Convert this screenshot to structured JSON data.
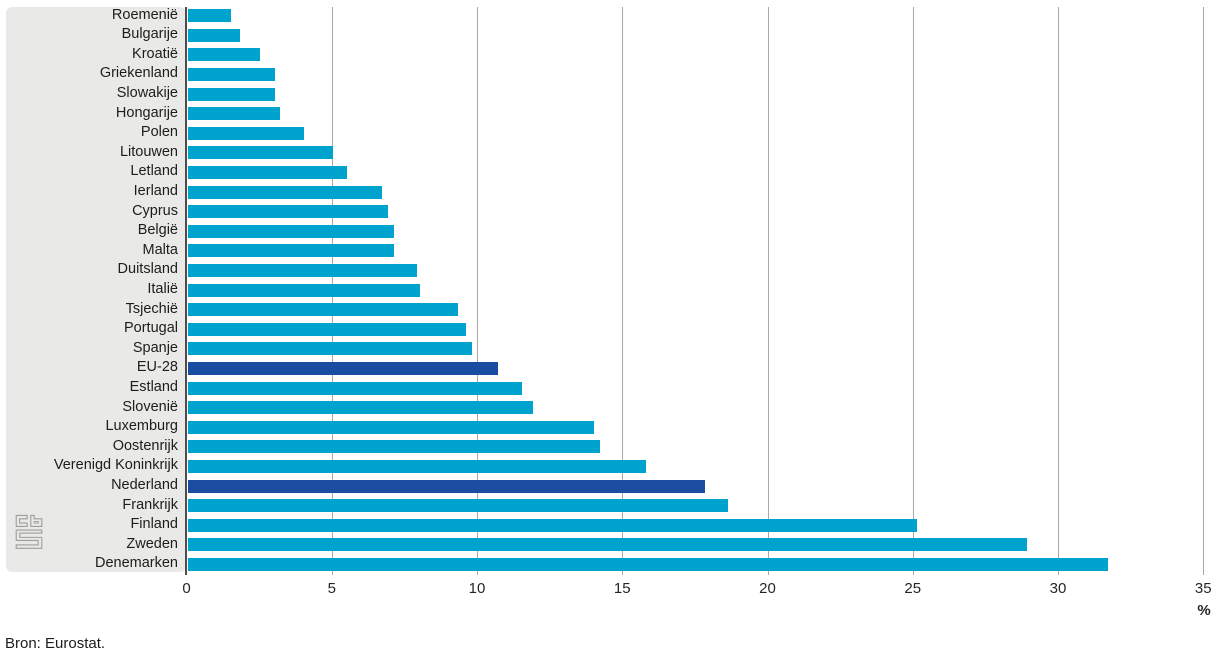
{
  "source_note": "Bron: Eurostat.",
  "axis": {
    "unit_label": "%",
    "ticks": [
      0,
      5,
      10,
      15,
      20,
      25,
      30,
      35
    ],
    "min": 0,
    "max": 35
  },
  "colors": {
    "bar": "#00a2ce",
    "highlight_bar": "#1a4da2",
    "panel_bg": "#e9e9e7",
    "gridline": "#a8a8a8",
    "axis_line": "#4d4d4d",
    "logo_gray": "#9d9d9c",
    "text": "#1d1d1b"
  },
  "logo": {
    "name": "cbs-logo"
  },
  "chart_data": {
    "type": "bar",
    "orientation": "horizontal",
    "title": "",
    "xlabel": "%",
    "ylabel": "",
    "xlim": [
      0,
      35
    ],
    "grid": true,
    "sort": "ascending-top-to-bottom",
    "categories": [
      "Roemenië",
      "Bulgarije",
      "Kroatië",
      "Griekenland",
      "Slowakije",
      "Hongarije",
      "Polen",
      "Litouwen",
      "Letland",
      "Ierland",
      "Cyprus",
      "België",
      "Malta",
      "Duitsland",
      "Italië",
      "Tsjechië",
      "Portugal",
      "Spanje",
      "EU-28",
      "Estland",
      "Slovenië",
      "Luxemburg",
      "Oostenrijk",
      "Verenigd Koninkrijk",
      "Nederland",
      "Frankrijk",
      "Finland",
      "Zweden",
      "Denemarken"
    ],
    "values": [
      1.5,
      1.8,
      2.5,
      3.0,
      3.0,
      3.2,
      4.0,
      5.0,
      5.5,
      6.7,
      6.9,
      7.1,
      7.1,
      7.9,
      8.0,
      9.3,
      9.6,
      9.8,
      10.7,
      11.5,
      11.9,
      14.0,
      14.2,
      15.8,
      17.8,
      18.6,
      25.1,
      28.9,
      31.7
    ],
    "highlighted_categories": [
      "EU-28",
      "Nederland"
    ],
    "source": "Bron: Eurostat."
  }
}
